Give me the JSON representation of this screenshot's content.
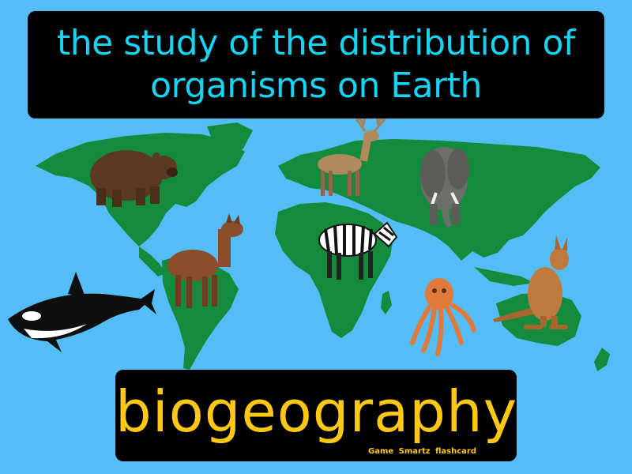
{
  "card": {
    "definition": "the study of the distribution of organisms on Earth",
    "term": "biogeography",
    "credit": "Game Smartz flashcard"
  },
  "colors": {
    "ocean": "#55bdf6",
    "land": "#148b3c",
    "definition_text": "#16d4f2",
    "term_text": "#ffc814",
    "box_background": "#000000"
  },
  "illustrations": [
    "bear",
    "deer",
    "elephant",
    "llama",
    "zebra",
    "orca",
    "octopus",
    "kangaroo"
  ]
}
